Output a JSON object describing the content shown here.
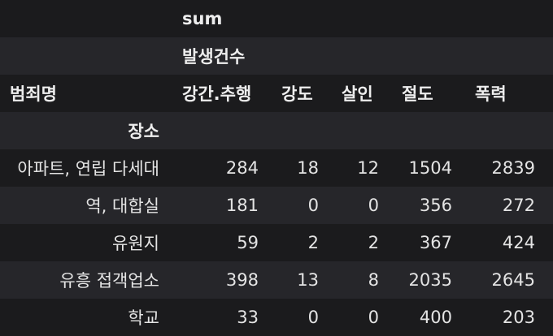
{
  "table": {
    "header_level0": "sum",
    "header_level1": "발생건수",
    "columns_index_name": "범죄명",
    "columns": [
      "강간.추행",
      "강도",
      "살인",
      "절도",
      "폭력"
    ],
    "row_index_name": "장소",
    "rows": [
      {
        "label": "아파트, 연립 다세대",
        "values": [
          "284",
          "18",
          "12",
          "1504",
          "2839"
        ]
      },
      {
        "label": "역, 대합실",
        "values": [
          "181",
          "0",
          "0",
          "356",
          "272"
        ]
      },
      {
        "label": "유원지",
        "values": [
          "59",
          "2",
          "2",
          "367",
          "424"
        ]
      },
      {
        "label": "유흥 접객업소",
        "values": [
          "398",
          "13",
          "8",
          "2035",
          "2645"
        ]
      },
      {
        "label": "학교",
        "values": [
          "33",
          "0",
          "0",
          "400",
          "203"
        ]
      }
    ]
  }
}
